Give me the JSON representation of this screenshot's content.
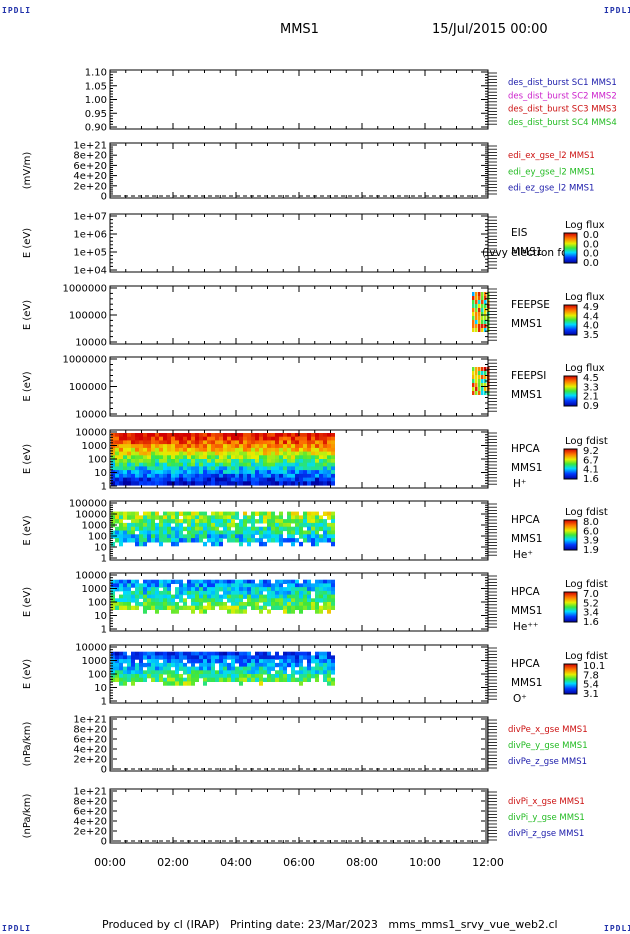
{
  "corner_label": "IPDLI",
  "header": {
    "title": "MMS1",
    "date": "15/Jul/2015 00:00"
  },
  "footer": "Produced by cl (IRAP)   Printing date: 23/Mar/2023   mms_mms1_srvy_vue_web2.cl",
  "x_ticks": [
    "00:00",
    "02:00",
    "04:00",
    "06:00",
    "08:00",
    "10:00",
    "12:00"
  ],
  "chart_data": [
    {
      "type": "line",
      "ylabel": "",
      "ylim": [
        0.9,
        1.1
      ],
      "ticks": [
        "1.10",
        "1.05",
        "1.00",
        "0.95",
        "0.90"
      ],
      "legend": [
        {
          "text": "des_dist_burst SC1 MMS1",
          "color": "#1a1aaa"
        },
        {
          "text": "des_dist_burst SC2 MMS2",
          "color": "#cc22cc"
        },
        {
          "text": "des_dist_burst SC3 MMS3",
          "color": "#cc1111"
        },
        {
          "text": "des_dist_burst SC4 MMS4",
          "color": "#22bb22"
        }
      ]
    },
    {
      "type": "line",
      "ylabel": "(mV/m)",
      "ticks": [
        "1e+21",
        "8e+20",
        "6e+20",
        "4e+20",
        "2e+20",
        "0"
      ],
      "legend": [
        {
          "text": "edi_ex_gse_l2 MMS1",
          "color": "#cc1111"
        },
        {
          "text": "edi_ey_gse_l2 MMS1",
          "color": "#22bb22"
        },
        {
          "text": "edi_ez_gse_l2 MMS1",
          "color": "#1a1aaa"
        }
      ]
    },
    {
      "type": "heatmap",
      "ylabel": "E (eV)",
      "ticks": [
        "1e+07",
        "1e+06",
        "1e+05",
        "1e+04"
      ],
      "labels": [
        "EIS",
        "MMS1"
      ],
      "overlay": "(Ivvy electron fd",
      "cbar_title": "Log flux",
      "cbar_ticks": [
        "0.0",
        "0.0",
        "0.0",
        "0.0"
      ]
    },
    {
      "type": "heatmap",
      "ylabel": "E (eV)",
      "ticks": [
        "1000000",
        "100000",
        "10000"
      ],
      "labels": [
        "FEEPSE",
        "MMS1"
      ],
      "cbar_title": "Log flux",
      "cbar_ticks": [
        "4.9",
        "4.4",
        "4.0",
        "3.5"
      ]
    },
    {
      "type": "heatmap",
      "ylabel": "E (eV)",
      "ticks": [
        "1000000",
        "100000",
        "10000"
      ],
      "labels": [
        "FEEPSI",
        "MMS1"
      ],
      "cbar_title": "Log flux",
      "cbar_ticks": [
        "4.5",
        "3.3",
        "2.1",
        "0.9"
      ]
    },
    {
      "type": "heatmap",
      "ylabel": "E (eV)",
      "ticks": [
        "10000",
        "1000",
        "100",
        "10",
        "1"
      ],
      "labels": [
        "HPCA",
        "MMS1",
        "H⁺"
      ],
      "cbar_title": "Log fdist",
      "cbar_ticks": [
        "9.2",
        "6.7",
        "4.1",
        "1.6"
      ]
    },
    {
      "type": "heatmap",
      "ylabel": "E (eV)",
      "ticks": [
        "100000",
        "10000",
        "1000",
        "100",
        "10",
        "1"
      ],
      "labels": [
        "HPCA",
        "MMS1",
        "He⁺"
      ],
      "cbar_title": "Log fdist",
      "cbar_ticks": [
        "8.0",
        "6.0",
        "3.9",
        "1.9"
      ]
    },
    {
      "type": "heatmap",
      "ylabel": "E (eV)",
      "ticks": [
        "10000",
        "1000",
        "100",
        "10",
        "1"
      ],
      "labels": [
        "HPCA",
        "MMS1",
        "He⁺⁺"
      ],
      "cbar_title": "Log fdist",
      "cbar_ticks": [
        "7.0",
        "5.2",
        "3.4",
        "1.6"
      ]
    },
    {
      "type": "heatmap",
      "ylabel": "E (eV)",
      "ticks": [
        "10000",
        "1000",
        "100",
        "10",
        "1"
      ],
      "labels": [
        "HPCA",
        "MMS1",
        "O⁺"
      ],
      "cbar_title": "Log fdist",
      "cbar_ticks": [
        "10.1",
        "7.8",
        "5.4",
        "3.1"
      ]
    },
    {
      "type": "line",
      "ylabel": "(nPa/km)",
      "ticks": [
        "1e+21",
        "8e+20",
        "6e+20",
        "4e+20",
        "2e+20",
        "0"
      ],
      "legend": [
        {
          "text": "divPe_x_gse MMS1",
          "color": "#cc1111"
        },
        {
          "text": "divPe_y_gse MMS1",
          "color": "#22bb22"
        },
        {
          "text": "divPe_z_gse MMS1",
          "color": "#1a1aaa"
        }
      ]
    },
    {
      "type": "line",
      "ylabel": "(nPa/km)",
      "ticks": [
        "1e+21",
        "8e+20",
        "6e+20",
        "4e+20",
        "2e+20",
        "0"
      ],
      "legend": [
        {
          "text": "divPi_x_gse MMS1",
          "color": "#cc1111"
        },
        {
          "text": "divPi_y_gse MMS1",
          "color": "#22bb22"
        },
        {
          "text": "divPi_z_gse MMS1",
          "color": "#1a1aaa"
        }
      ]
    }
  ]
}
